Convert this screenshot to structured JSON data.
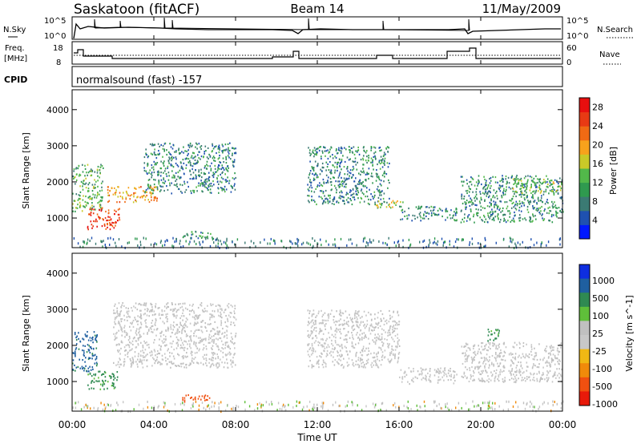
{
  "header": {
    "station": "Saskatoon (fitACF)",
    "beam": "Beam 14",
    "date": "11/May/2009"
  },
  "strip_panels": {
    "nsky": {
      "label": "N.Sky",
      "ticks": [
        "10^5",
        "10^0"
      ],
      "right_label": "N.Search",
      "right_ticks": [
        "10^5",
        "10^0"
      ]
    },
    "freq": {
      "label": "Freq.",
      "unit": "[MHz]",
      "ticks": [
        "18",
        "8"
      ],
      "right_label": "Nave",
      "right_ticks": [
        "60",
        "0"
      ]
    },
    "cpid": {
      "label": "CPID",
      "text": "normalsound (fast) -157"
    }
  },
  "x_axis": {
    "label": "Time UT",
    "ticks": [
      "00:00",
      "04:00",
      "08:00",
      "12:00",
      "16:00",
      "20:00",
      "00:00"
    ]
  },
  "colors": {
    "power": [
      "#0019ff",
      "#1f51b0",
      "#3b7a73",
      "#2f9a4f",
      "#52b84a",
      "#c9c928",
      "#f7a21c",
      "#f06a14",
      "#e83a14",
      "#e80f0f"
    ],
    "velocity": [
      "#e81a0a",
      "#f05010",
      "#f08a0a",
      "#f0b814",
      "#c8c8c8",
      "#c0c0c0",
      "#5fbf3a",
      "#2f8a52",
      "#1f5fa0",
      "#0e2ee0"
    ]
  },
  "chart_data": [
    {
      "type": "heatmap",
      "title": "Power",
      "xlabel": "Time UT",
      "ylabel": "Slant Range [km]",
      "xlim": [
        "00:00",
        "24:00"
      ],
      "ylim": [
        180,
        4550
      ],
      "y_ticks": [
        "1000",
        "2000",
        "3000",
        "4000"
      ],
      "colorbar": {
        "label": "Power [dB]",
        "range": [
          0,
          30
        ],
        "ticks": [
          "4",
          "8",
          "12",
          "16",
          "20",
          "24",
          "28"
        ]
      },
      "echo_bands": [
        {
          "t_start": 0.0,
          "t_end": 1.5,
          "range_start": 1200,
          "range_end": 2500,
          "power_db": 12
        },
        {
          "t_start": 0.7,
          "t_end": 2.3,
          "range_start": 700,
          "range_end": 1300,
          "power_db": 26
        },
        {
          "t_start": 1.7,
          "t_end": 4.2,
          "range_start": 1450,
          "range_end": 1900,
          "power_db": 20
        },
        {
          "t_start": 3.5,
          "t_end": 8.0,
          "range_start": 1700,
          "range_end": 3100,
          "power_db": 8
        },
        {
          "t_start": 5.3,
          "t_end": 7.0,
          "range_start": 450,
          "range_end": 650,
          "power_db": 10
        },
        {
          "t_start": 11.5,
          "t_end": 15.5,
          "range_start": 1400,
          "range_end": 3000,
          "power_db": 8
        },
        {
          "t_start": 14.8,
          "t_end": 16.2,
          "range_start": 1300,
          "range_end": 1500,
          "power_db": 16
        },
        {
          "t_start": 16.0,
          "t_end": 18.8,
          "range_start": 950,
          "range_end": 1350,
          "power_db": 8
        },
        {
          "t_start": 19.0,
          "t_end": 24.0,
          "range_start": 900,
          "range_end": 2200,
          "power_db": 9
        },
        {
          "t_start": 21.5,
          "t_end": 24.0,
          "range_start": 1700,
          "range_end": 2100,
          "power_db": 14
        }
      ]
    },
    {
      "type": "heatmap",
      "title": "Velocity",
      "xlabel": "Time UT",
      "ylabel": "Slant Range [km]",
      "xlim": [
        "00:00",
        "24:00"
      ],
      "ylim": [
        180,
        4550
      ],
      "y_ticks": [
        "1000",
        "2000",
        "3000",
        "4000"
      ],
      "colorbar": {
        "label": "Velocity [m s^-1]",
        "ticks": [
          "1000",
          "500",
          "100",
          "25",
          "-25",
          "-100",
          "-500",
          "-1000"
        ]
      },
      "echo_bands": [
        {
          "t_start": 0.0,
          "t_end": 1.2,
          "range_start": 1300,
          "range_end": 2400,
          "velocity": 600
        },
        {
          "t_start": 0.7,
          "t_end": 2.2,
          "range_start": 800,
          "range_end": 1300,
          "velocity": 200
        },
        {
          "t_start": 2.0,
          "t_end": 8.0,
          "range_start": 1400,
          "range_end": 3200,
          "velocity": 0
        },
        {
          "t_start": 5.3,
          "t_end": 6.8,
          "range_start": 450,
          "range_end": 650,
          "velocity": -300
        },
        {
          "t_start": 11.5,
          "t_end": 16.0,
          "range_start": 1400,
          "range_end": 3000,
          "velocity": 0
        },
        {
          "t_start": 16.0,
          "t_end": 18.8,
          "range_start": 950,
          "range_end": 1400,
          "velocity": 0
        },
        {
          "t_start": 19.0,
          "t_end": 24.0,
          "range_start": 1000,
          "range_end": 2100,
          "velocity": 0
        },
        {
          "t_start": 20.3,
          "t_end": 20.9,
          "range_start": 2100,
          "range_end": 2500,
          "velocity": 200
        }
      ]
    }
  ]
}
